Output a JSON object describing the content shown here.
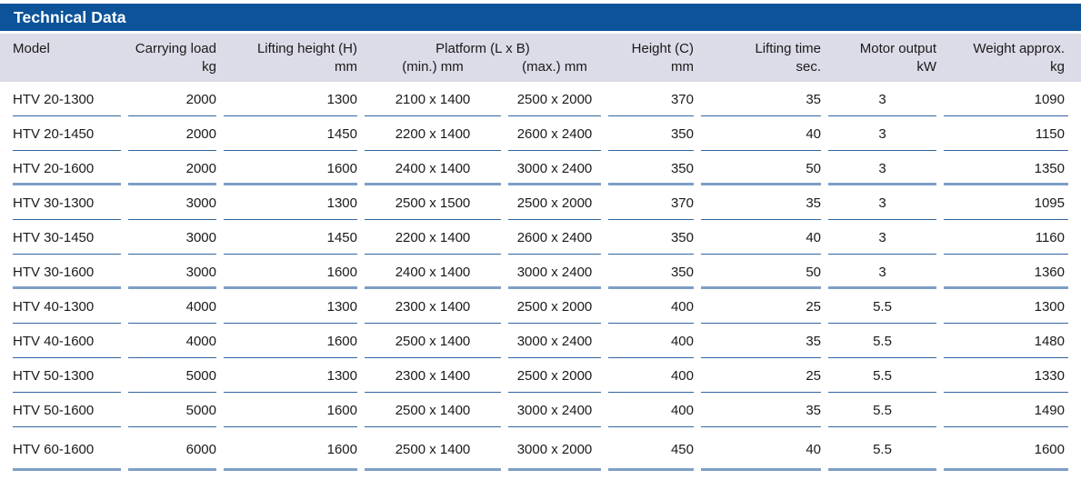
{
  "title_bar": {
    "title": "Technical Data"
  },
  "table": {
    "header": {
      "model": {
        "label": "Model",
        "unit": ""
      },
      "carrying_load": {
        "label": "Carrying load",
        "unit": "kg"
      },
      "lifting_height": {
        "label": "Lifting height (H)",
        "unit": "mm"
      },
      "platform": {
        "label": "Platform (L x B)",
        "min": "(min.) mm",
        "max": "(max.) mm"
      },
      "height": {
        "label": "Height (C)",
        "unit": "mm"
      },
      "lifting_time": {
        "label": "Lifting time",
        "unit": "sec."
      },
      "motor_output": {
        "label": "Motor output",
        "unit": "kW"
      },
      "weight": {
        "label": "Weight approx.",
        "unit": "kg"
      }
    },
    "rows": [
      {
        "values": [
          "HTV 20-1300",
          "2000",
          "1300",
          "2100 x 1400",
          "2500 x 2000",
          "370",
          "35",
          "3",
          "1090"
        ],
        "group_end": false
      },
      {
        "values": [
          "HTV 20-1450",
          "2000",
          "1450",
          "2200 x 1400",
          "2600 x 2400",
          "350",
          "40",
          "3",
          "1150"
        ],
        "group_end": false
      },
      {
        "values": [
          "HTV 20-1600",
          "2000",
          "1600",
          "2400 x 1400",
          "3000 x 2400",
          "350",
          "50",
          "3",
          "1350"
        ],
        "group_end": true
      },
      {
        "values": [
          "HTV 30-1300",
          "3000",
          "1300",
          "2500 x 1500",
          "2500 x 2000",
          "370",
          "35",
          "3",
          "1095"
        ],
        "group_end": false
      },
      {
        "values": [
          "HTV 30-1450",
          "3000",
          "1450",
          "2200 x 1400",
          "2600 x 2400",
          "350",
          "40",
          "3",
          "1160"
        ],
        "group_end": false
      },
      {
        "values": [
          "HTV 30-1600",
          "3000",
          "1600",
          "2400 x 1400",
          "3000 x 2400",
          "350",
          "50",
          "3",
          "1360"
        ],
        "group_end": true
      },
      {
        "values": [
          "HTV 40-1300",
          "4000",
          "1300",
          "2300 x 1400",
          "2500 x 2000",
          "400",
          "25",
          "5.5",
          "1300"
        ],
        "group_end": false
      },
      {
        "values": [
          "HTV 40-1600",
          "4000",
          "1600",
          "2500 x 1400",
          "3000 x 2400",
          "400",
          "35",
          "5.5",
          "1480"
        ],
        "group_end": false
      },
      {
        "values": [
          "HTV 50-1300",
          "5000",
          "1300",
          "2300 x 1400",
          "2500 x 2000",
          "400",
          "25",
          "5.5",
          "1330"
        ],
        "group_end": false
      },
      {
        "values": [
          "HTV 50-1600",
          "5000",
          "1600",
          "2500 x 1400",
          "3000 x 2400",
          "400",
          "35",
          "5.5",
          "1490"
        ],
        "group_end": false
      },
      {
        "values": [
          "HTV 60-1600",
          "6000",
          "1600",
          "2500 x 1400",
          "3000 x 2000",
          "450",
          "40",
          "5.5",
          "1600"
        ],
        "group_end": false
      }
    ]
  },
  "colors": {
    "title_bar_bg": "#0c5399",
    "title_text": "#ffffff",
    "subheader_bg": "#dcdbe8",
    "row_separator": "#33669e",
    "group_separator": "#7e9fc6",
    "body_text": "#1a1a1a"
  }
}
